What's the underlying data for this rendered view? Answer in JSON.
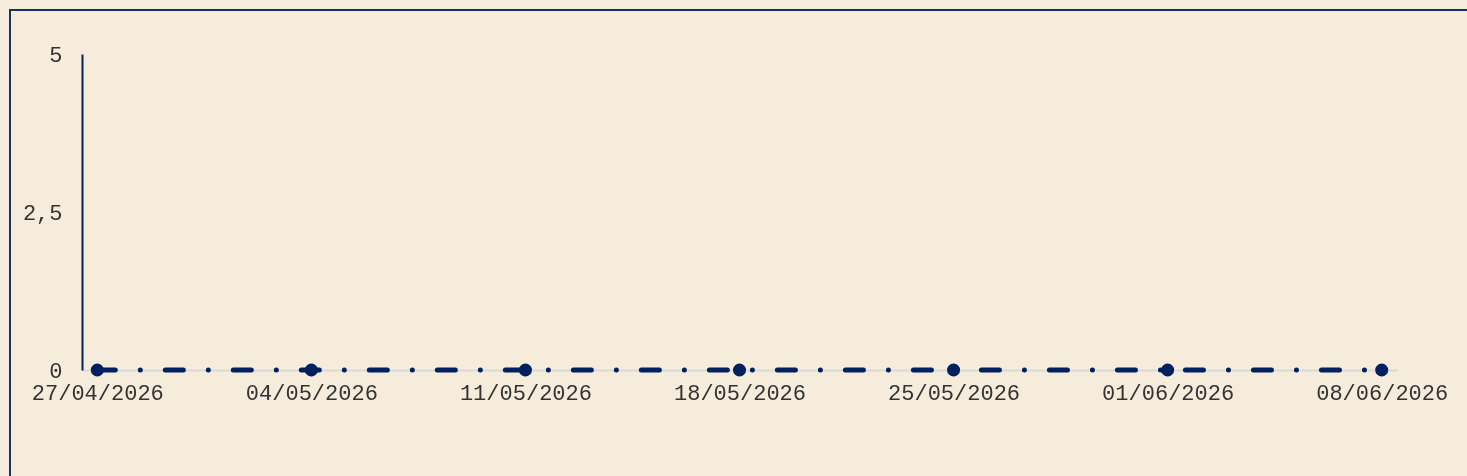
{
  "chart_data": {
    "type": "line",
    "x": [
      "2026-04-27",
      "2026-05-04",
      "2026-05-11",
      "2026-05-18",
      "2026-05-25",
      "2026-06-01",
      "2026-06-08"
    ],
    "series": [
      {
        "color": "#002060",
        "values": [
          0,
          0,
          0,
          0,
          0,
          0,
          0
        ]
      }
    ],
    "xlim": [
      "2026-04-26T12:00",
      "2026-06-08T12:00"
    ],
    "xticks": [
      {
        "value": "2026-04-27",
        "label": "27/04/2026"
      },
      {
        "value": "2026-05-04",
        "label": "04/05/2026"
      },
      {
        "value": "2026-05-11",
        "label": "11/05/2026"
      },
      {
        "value": "2026-05-18",
        "label": "18/05/2026"
      },
      {
        "value": "2026-05-25",
        "label": "25/05/2026"
      },
      {
        "value": "2026-06-01",
        "label": "01/06/2026"
      },
      {
        "value": "2026-06-08",
        "label": "08/06/2026"
      }
    ],
    "ylim": [
      0,
      5
    ],
    "yticks": [
      0,
      {
        "value": 2.5,
        "label": "2,5"
      },
      5
    ],
    "marker": "circle",
    "line_style": "dashed",
    "grid": false,
    "legend": false
  }
}
